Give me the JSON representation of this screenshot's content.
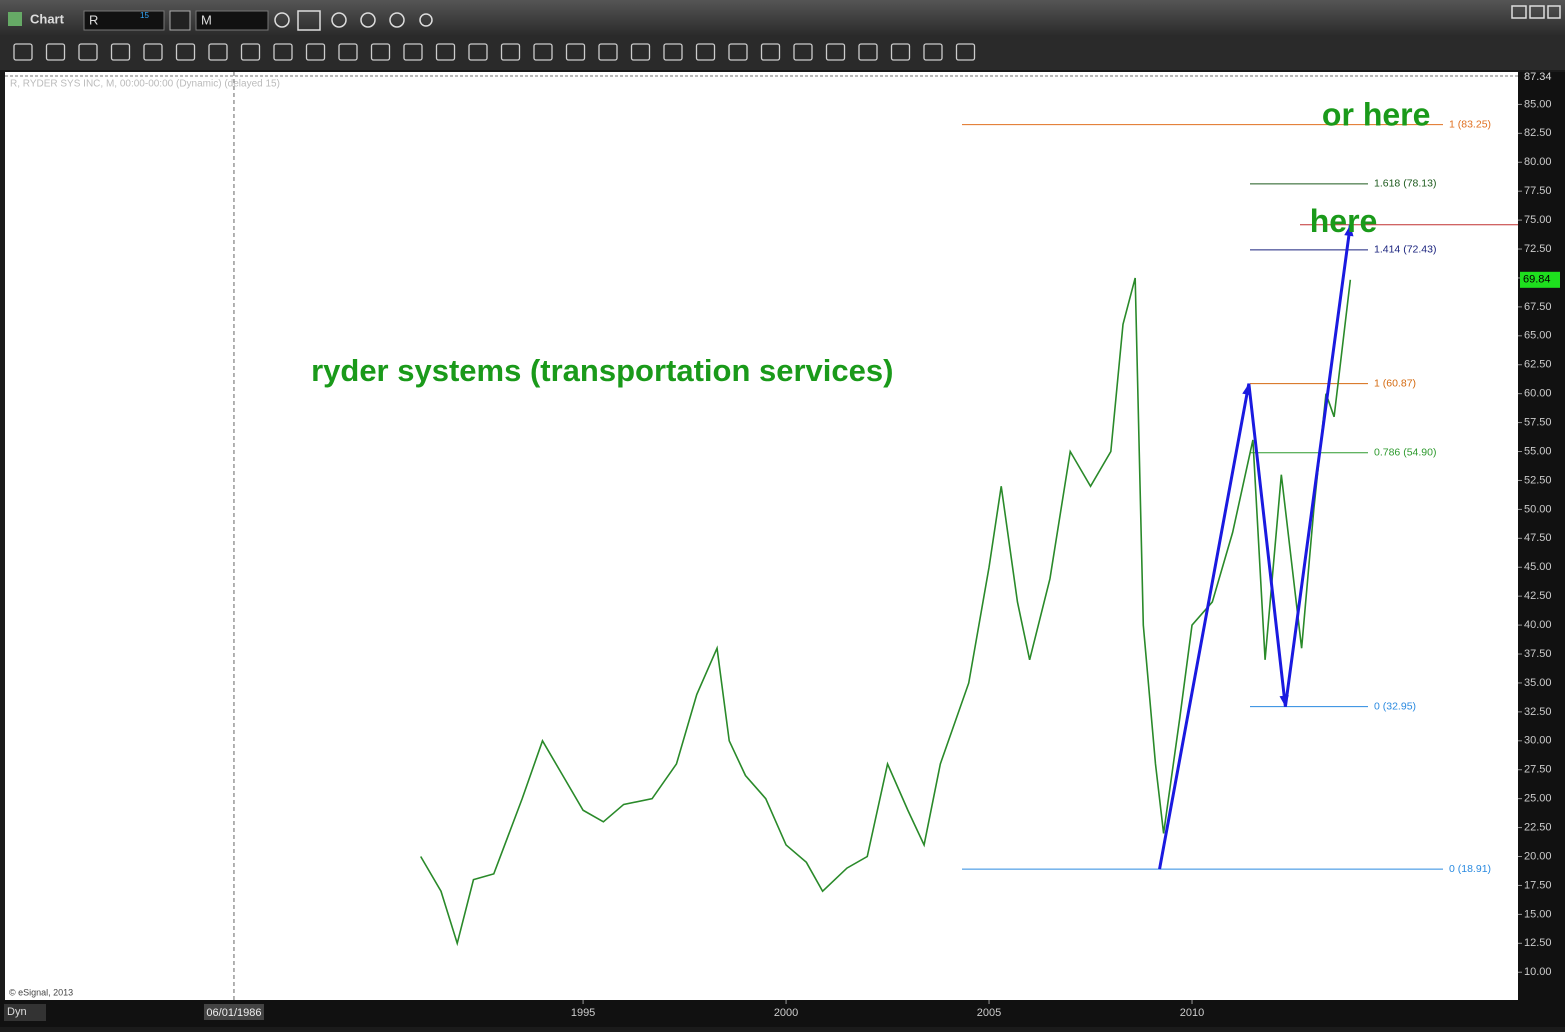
{
  "window": {
    "title": "Chart",
    "symbol": "R",
    "symbol_badge": "15",
    "interval": "M"
  },
  "chart_data": {
    "type": "line",
    "symbol_info": "R, RYDER SYS INC, M, 00:00-00:00 (Dynamic) (delayed 15)",
    "copyright": "© eSignal, 2013",
    "mode": "Dyn",
    "cursor_label": "06/01/1986",
    "cursor_x": 1986.4,
    "annotations": [
      {
        "text": "or here",
        "x": 2013.2,
        "y": 83.9
      },
      {
        "text": "here",
        "x": 2012.9,
        "y": 74.7
      },
      {
        "text": "ryder systems (transportation services)",
        "x": 1988.3,
        "y": 61.8
      }
    ],
    "x": [
      1991.0,
      1991.5,
      1991.9,
      1992.3,
      1992.8,
      1993.5,
      1994.0,
      1994.5,
      1995.0,
      1995.5,
      1996.0,
      1996.7,
      1997.3,
      1997.8,
      1998.3,
      1998.6,
      1999.0,
      1999.5,
      2000.0,
      2000.5,
      2000.9,
      2001.5,
      2002.0,
      2002.5,
      2003.0,
      2003.4,
      2003.8,
      2004.5,
      2005.0,
      2005.3,
      2005.7,
      2006.0,
      2006.5,
      2007.0,
      2007.5,
      2008.0,
      2008.3,
      2008.6,
      2008.8,
      2009.1,
      2009.3,
      2009.7,
      2010.0,
      2010.5,
      2011.0,
      2011.5,
      2011.8,
      2012.2,
      2012.7,
      2013.0,
      2013.3,
      2013.5,
      2013.9
    ],
    "series": [
      {
        "name": "R",
        "color": "#2a8a2a",
        "values": [
          20,
          17,
          12.5,
          18,
          18.5,
          25,
          30,
          27,
          24,
          23,
          24.5,
          25,
          28,
          34,
          38,
          30,
          27,
          25,
          21,
          19.5,
          17,
          19,
          20,
          28,
          24,
          21,
          28,
          35,
          45,
          52,
          42,
          37,
          44,
          55,
          52,
          55,
          66,
          70,
          40,
          28,
          22,
          32,
          40,
          42,
          48,
          56,
          37,
          53,
          38,
          50,
          60,
          58,
          69.84
        ]
      }
    ],
    "fib_levels": [
      {
        "value": 83.25,
        "label": "1 (83.25)",
        "color": "#e07020"
      },
      {
        "value": 78.13,
        "label": "1.618 (78.13)",
        "color": "#1d5a1d"
      },
      {
        "value": 72.43,
        "label": "1.414 (72.43)",
        "color": "#1a237e"
      },
      {
        "value": 60.87,
        "label": "1 (60.87)",
        "color": "#d46a10"
      },
      {
        "value": 54.9,
        "label": "0.786 (54.90)",
        "color": "#2e9a2e"
      },
      {
        "value": 32.95,
        "label": "0 (32.95)",
        "color": "#2a8ae0"
      },
      {
        "value": 18.91,
        "label": "0 (18.91)",
        "color": "#2a8ae0"
      }
    ],
    "target_line": {
      "value": 74.6,
      "color": "#c03030"
    },
    "pattern": {
      "color": "#1a1ae0",
      "x": [
        2009.2,
        2011.4,
        2012.3,
        2013.9
      ],
      "values": [
        18.91,
        60.87,
        32.95,
        74.6
      ]
    },
    "top_price": 87.34,
    "last_price": 69.84,
    "xlim": [
      1980.76,
      2018.03
    ],
    "xticks": [
      1995,
      2000,
      2005,
      2010
    ],
    "ylim": [
      7.6,
      87.8
    ],
    "yticks": [
      {
        "value": 10,
        "label": "10.00"
      },
      {
        "value": 12.5,
        "label": "12.50"
      },
      {
        "value": 15,
        "label": "15.00"
      },
      {
        "value": 17.5,
        "label": "17.50"
      },
      {
        "value": 20,
        "label": "20.00"
      },
      {
        "value": 22.5,
        "label": "22.50"
      },
      {
        "value": 25,
        "label": "25.00"
      },
      {
        "value": 27.5,
        "label": "27.50"
      },
      {
        "value": 30,
        "label": "30.00"
      },
      {
        "value": 32.5,
        "label": "32.50"
      },
      {
        "value": 35,
        "label": "35.00"
      },
      {
        "value": 37.5,
        "label": "37.50"
      },
      {
        "value": 40,
        "label": "40.00"
      },
      {
        "value": 42.5,
        "label": "42.50"
      },
      {
        "value": 45,
        "label": "45.00"
      },
      {
        "value": 47.5,
        "label": "47.50"
      },
      {
        "value": 50,
        "label": "50.00"
      },
      {
        "value": 52.5,
        "label": "52.50"
      },
      {
        "value": 55,
        "label": "55.00"
      },
      {
        "value": 57.5,
        "label": "57.50"
      },
      {
        "value": 60,
        "label": "60.00"
      },
      {
        "value": 62.5,
        "label": "62.50"
      },
      {
        "value": 65,
        "label": "65.00"
      },
      {
        "value": 67.5,
        "label": "67.50"
      },
      {
        "value": 70,
        "label": "70.00"
      },
      {
        "value": 72.5,
        "label": "72.50"
      },
      {
        "value": 75,
        "label": "75.00"
      },
      {
        "value": 77.5,
        "label": "77.50"
      },
      {
        "value": 80,
        "label": "80.00"
      },
      {
        "value": 82.5,
        "label": "82.50"
      },
      {
        "value": 85,
        "label": "85.00"
      }
    ]
  }
}
